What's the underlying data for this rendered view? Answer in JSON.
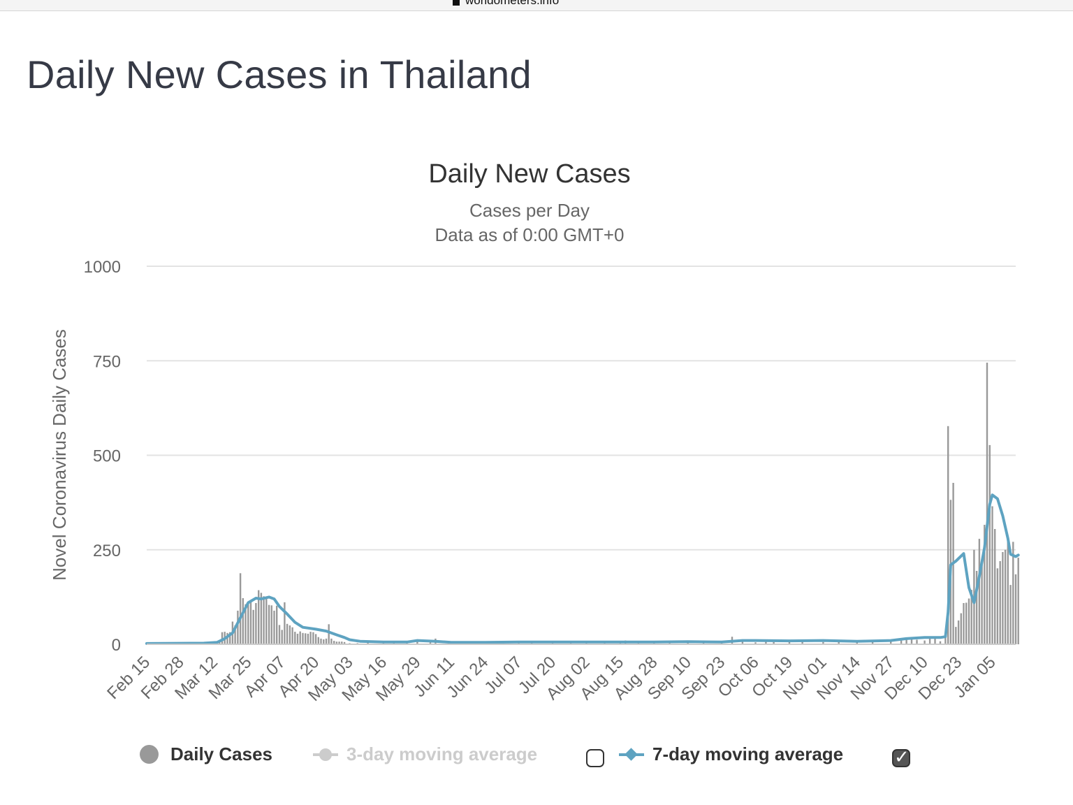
{
  "browser": {
    "url": "worldometers.info"
  },
  "page": {
    "title": "Daily New Cases in Thailand"
  },
  "legend": {
    "daily_label": "Daily Cases",
    "ma3_label": "3-day moving average",
    "ma7_label": "7-day moving average",
    "ma3_checked": false,
    "ma7_checked": true
  },
  "colors": {
    "bars": "#999999",
    "ma7": "#5ea3c1",
    "ma3_disabled": "#cccccc",
    "grid": "#e3e3e3",
    "text": "#666666"
  },
  "chart_data": {
    "type": "bar",
    "title": "Daily New Cases",
    "subtitle": [
      "Cases per Day",
      "Data as of 0:00 GMT+0"
    ],
    "ylabel": "Novel Coronavirus Daily Cases",
    "xlabel": "",
    "ylim": [
      0,
      1000
    ],
    "yticks": [
      0,
      250,
      500,
      750,
      1000
    ],
    "xticks": [
      "Feb 15",
      "Feb 28",
      "Mar 12",
      "Mar 25",
      "Apr 07",
      "Apr 20",
      "May 03",
      "May 16",
      "May 29",
      "Jun 11",
      "Jun 24",
      "Jul 07",
      "Jul 20",
      "Aug 02",
      "Aug 15",
      "Aug 28",
      "Sep 10",
      "Sep 23",
      "Oct 06",
      "Oct 19",
      "Nov 01",
      "Nov 14",
      "Nov 27",
      "Dec 10",
      "Dec 23",
      "Jan 05"
    ],
    "x_start": "Feb 15",
    "x_end": "Jan 14",
    "legend_position": "bottom",
    "grid": true,
    "series": [
      {
        "name": "Daily Cases",
        "type": "bar",
        "points": [
          [
            "Feb 15",
            1
          ],
          [
            "Feb 18",
            1
          ],
          [
            "Feb 21",
            1
          ],
          [
            "Feb 25",
            2
          ],
          [
            "Feb 28",
            2
          ],
          [
            "Mar 02",
            2
          ],
          [
            "Mar 05",
            2
          ],
          [
            "Mar 08",
            3
          ],
          [
            "Mar 10",
            5
          ],
          [
            "Mar 12",
            3
          ],
          [
            "Mar 14",
            7
          ],
          [
            "Mar 15",
            32
          ],
          [
            "Mar 16",
            33
          ],
          [
            "Mar 17",
            30
          ],
          [
            "Mar 18",
            32
          ],
          [
            "Mar 19",
            60
          ],
          [
            "Mar 20",
            50
          ],
          [
            "Mar 21",
            89
          ],
          [
            "Mar 22",
            188
          ],
          [
            "Mar 23",
            122
          ],
          [
            "Mar 24",
            106
          ],
          [
            "Mar 25",
            107
          ],
          [
            "Mar 26",
            111
          ],
          [
            "Mar 27",
            91
          ],
          [
            "Mar 28",
            109
          ],
          [
            "Mar 29",
            143
          ],
          [
            "Mar 30",
            136
          ],
          [
            "Mar 31",
            127
          ],
          [
            "Apr 01",
            120
          ],
          [
            "Apr 02",
            104
          ],
          [
            "Apr 03",
            103
          ],
          [
            "Apr 04",
            89
          ],
          [
            "Apr 05",
            102
          ],
          [
            "Apr 06",
            51
          ],
          [
            "Apr 07",
            38
          ],
          [
            "Apr 08",
            111
          ],
          [
            "Apr 09",
            54
          ],
          [
            "Apr 10",
            50
          ],
          [
            "Apr 11",
            45
          ],
          [
            "Apr 12",
            33
          ],
          [
            "Apr 13",
            28
          ],
          [
            "Apr 14",
            34
          ],
          [
            "Apr 15",
            30
          ],
          [
            "Apr 16",
            29
          ],
          [
            "Apr 17",
            28
          ],
          [
            "Apr 18",
            33
          ],
          [
            "Apr 19",
            32
          ],
          [
            "Apr 20",
            27
          ],
          [
            "Apr 21",
            19
          ],
          [
            "Apr 22",
            15
          ],
          [
            "Apr 23",
            13
          ],
          [
            "Apr 24",
            15
          ],
          [
            "Apr 25",
            53
          ],
          [
            "Apr 26",
            15
          ],
          [
            "Apr 27",
            9
          ],
          [
            "Apr 28",
            7
          ],
          [
            "Apr 29",
            7
          ],
          [
            "Apr 30",
            7
          ],
          [
            "May 01",
            6
          ],
          [
            "May 03",
            3
          ],
          [
            "May 06",
            3
          ],
          [
            "May 10",
            5
          ],
          [
            "May 16",
            3
          ],
          [
            "May 20",
            3
          ],
          [
            "May 25",
            5
          ],
          [
            "May 29",
            10
          ],
          [
            "Jun 03",
            5
          ],
          [
            "Jun 05",
            15
          ],
          [
            "Jun 11",
            3
          ],
          [
            "Jun 17",
            4
          ],
          [
            "Jun 24",
            3
          ],
          [
            "Jul 01",
            5
          ],
          [
            "Jul 07",
            6
          ],
          [
            "Jul 12",
            4
          ],
          [
            "Jul 20",
            8
          ],
          [
            "Jul 27",
            5
          ],
          [
            "Aug 02",
            6
          ],
          [
            "Aug 09",
            4
          ],
          [
            "Aug 15",
            5
          ],
          [
            "Aug 17",
            10
          ],
          [
            "Aug 22",
            4
          ],
          [
            "Aug 28",
            6
          ],
          [
            "Sep 03",
            4
          ],
          [
            "Sep 10",
            8
          ],
          [
            "Sep 16",
            5
          ],
          [
            "Sep 23",
            4
          ],
          [
            "Sep 27",
            20
          ],
          [
            "Oct 01",
            8
          ],
          [
            "Oct 06",
            5
          ],
          [
            "Oct 10",
            12
          ],
          [
            "Oct 13",
            6
          ],
          [
            "Oct 19",
            8
          ],
          [
            "Oct 24",
            10
          ],
          [
            "Nov 01",
            6
          ],
          [
            "Nov 07",
            7
          ],
          [
            "Nov 14",
            8
          ],
          [
            "Nov 20",
            9
          ],
          [
            "Nov 27",
            7
          ],
          [
            "Dec 01",
            10
          ],
          [
            "Dec 03",
            17
          ],
          [
            "Dec 05",
            18
          ],
          [
            "Dec 07",
            12
          ],
          [
            "Dec 10",
            10
          ],
          [
            "Dec 12",
            15
          ],
          [
            "Dec 14",
            20
          ],
          [
            "Dec 16",
            8
          ],
          [
            "Dec 18",
            17
          ],
          [
            "Dec 19",
            577
          ],
          [
            "Dec 20",
            382
          ],
          [
            "Dec 21",
            427
          ],
          [
            "Dec 22",
            46
          ],
          [
            "Dec 23",
            63
          ],
          [
            "Dec 24",
            82
          ],
          [
            "Dec 25",
            109
          ],
          [
            "Dec 26",
            110
          ],
          [
            "Dec 27",
            121
          ],
          [
            "Dec 28",
            144
          ],
          [
            "Dec 29",
            250
          ],
          [
            "Dec 30",
            194
          ],
          [
            "Dec 31",
            279
          ],
          [
            "Jan 01",
            212
          ],
          [
            "Jan 02",
            316
          ],
          [
            "Jan 03",
            745
          ],
          [
            "Jan 04",
            527
          ],
          [
            "Jan 05",
            365
          ],
          [
            "Jan 06",
            305
          ],
          [
            "Jan 07",
            201
          ],
          [
            "Jan 08",
            220
          ],
          [
            "Jan 09",
            244
          ],
          [
            "Jan 10",
            250
          ],
          [
            "Jan 11",
            278
          ],
          [
            "Jan 12",
            157
          ],
          [
            "Jan 13",
            271
          ],
          [
            "Jan 14",
            185
          ],
          [
            "Jan 15",
            229
          ]
        ]
      },
      {
        "name": "7-day moving average",
        "type": "line",
        "points": [
          [
            "Feb 15",
            2
          ],
          [
            "Mar 08",
            3
          ],
          [
            "Mar 13",
            5
          ],
          [
            "Mar 16",
            15
          ],
          [
            "Mar 19",
            30
          ],
          [
            "Mar 22",
            70
          ],
          [
            "Mar 25",
            110
          ],
          [
            "Mar 28",
            122
          ],
          [
            "Mar 30",
            120
          ],
          [
            "Apr 02",
            125
          ],
          [
            "Apr 04",
            120
          ],
          [
            "Apr 06",
            100
          ],
          [
            "Apr 09",
            80
          ],
          [
            "Apr 12",
            58
          ],
          [
            "Apr 15",
            45
          ],
          [
            "Apr 20",
            40
          ],
          [
            "Apr 24",
            35
          ],
          [
            "Apr 28",
            25
          ],
          [
            "May 01",
            18
          ],
          [
            "May 03",
            12
          ],
          [
            "May 07",
            8
          ],
          [
            "May 16",
            6
          ],
          [
            "May 25",
            6
          ],
          [
            "May 29",
            10
          ],
          [
            "Jun 05",
            8
          ],
          [
            "Jun 11",
            5
          ],
          [
            "Jun 24",
            5
          ],
          [
            "Jul 07",
            6
          ],
          [
            "Jul 20",
            6
          ],
          [
            "Aug 02",
            6
          ],
          [
            "Aug 15",
            6
          ],
          [
            "Aug 28",
            6
          ],
          [
            "Sep 10",
            7
          ],
          [
            "Sep 23",
            6
          ],
          [
            "Oct 01",
            10
          ],
          [
            "Oct 06",
            10
          ],
          [
            "Oct 19",
            9
          ],
          [
            "Nov 01",
            10
          ],
          [
            "Nov 14",
            8
          ],
          [
            "Nov 27",
            10
          ],
          [
            "Dec 03",
            15
          ],
          [
            "Dec 10",
            18
          ],
          [
            "Dec 16",
            18
          ],
          [
            "Dec 18",
            20
          ],
          [
            "Dec 19",
            85
          ],
          [
            "Dec 20",
            210
          ],
          [
            "Dec 22",
            220
          ],
          [
            "Dec 25",
            240
          ],
          [
            "Dec 27",
            150
          ],
          [
            "Dec 29",
            110
          ],
          [
            "Dec 31",
            180
          ],
          [
            "Jan 02",
            255
          ],
          [
            "Jan 04",
            370
          ],
          [
            "Jan 05",
            395
          ],
          [
            "Jan 07",
            385
          ],
          [
            "Jan 09",
            340
          ],
          [
            "Jan 11",
            280
          ],
          [
            "Jan 12",
            238
          ],
          [
            "Jan 14",
            232
          ],
          [
            "Jan 15",
            236
          ]
        ]
      }
    ]
  }
}
